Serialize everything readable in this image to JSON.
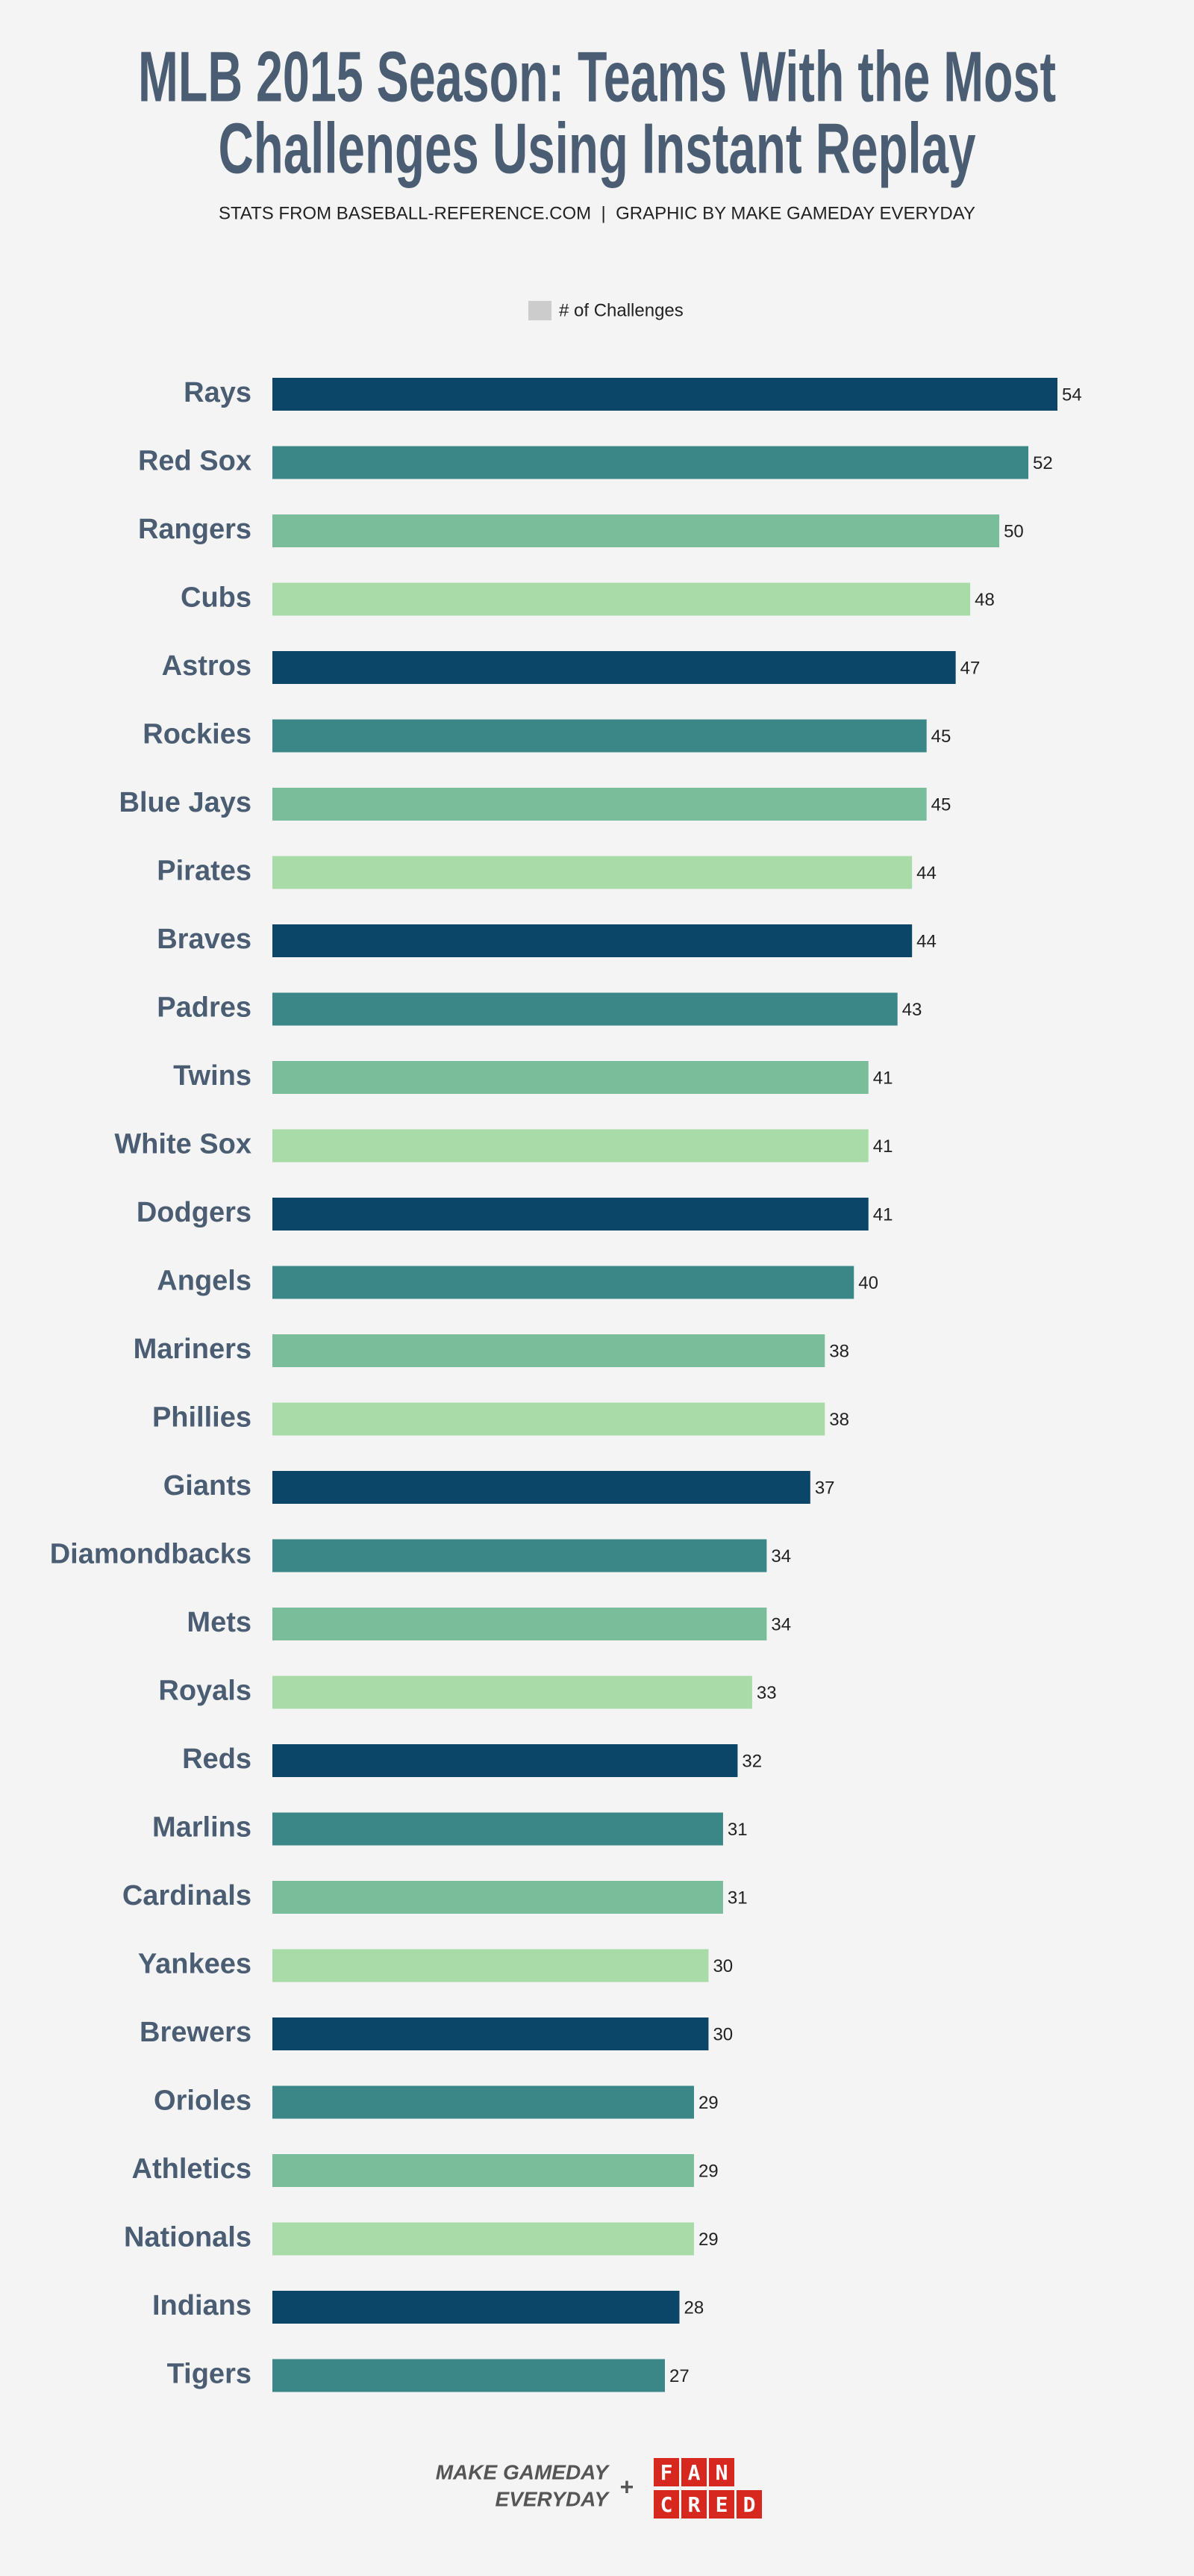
{
  "chart_data": {
    "type": "barh",
    "title": [
      "MLB 2015 Season: Teams With the Most",
      "Challenges Using Instant Replay"
    ],
    "subtitle": "STATS FROM BASEBALL-REFERENCE.COM  |  GRAPHIC BY MAKE GAMEDAY EVERYDAY",
    "categories": [
      "Rays",
      "Red Sox",
      "Rangers",
      "Cubs",
      "Astros",
      "Rockies",
      "Blue Jays",
      "Pirates",
      "Braves",
      "Padres",
      "Twins",
      "White Sox",
      "Dodgers",
      "Angels",
      "Mariners",
      "Phillies",
      "Giants",
      "Diamondbacks",
      "Mets",
      "Royals",
      "Reds",
      "Marlins",
      "Cardinals",
      "Yankees",
      "Brewers",
      "Orioles",
      "Athletics",
      "Nationals",
      "Indians",
      "Tigers"
    ],
    "series": [
      {
        "name": "# of Challenges",
        "color": "#cccccc",
        "values": [
          54,
          52,
          50,
          48,
          47,
          45,
          45,
          44,
          44,
          43,
          41,
          41,
          41,
          40,
          38,
          38,
          37,
          34,
          34,
          33,
          32,
          31,
          31,
          30,
          30,
          29,
          29,
          29,
          28,
          27
        ]
      }
    ],
    "bar_colors": [
      "#0b4668",
      "#3b8686",
      "#79bd9a",
      "#a8dba8"
    ],
    "xlim": [
      0,
      54
    ],
    "footer": {
      "left": [
        "MAKE GAMEDAY",
        "EVERYDAY"
      ],
      "plus": "+",
      "right": [
        [
          "F",
          "A",
          "N"
        ],
        [
          "C",
          "R",
          "E",
          "D"
        ]
      ]
    }
  }
}
